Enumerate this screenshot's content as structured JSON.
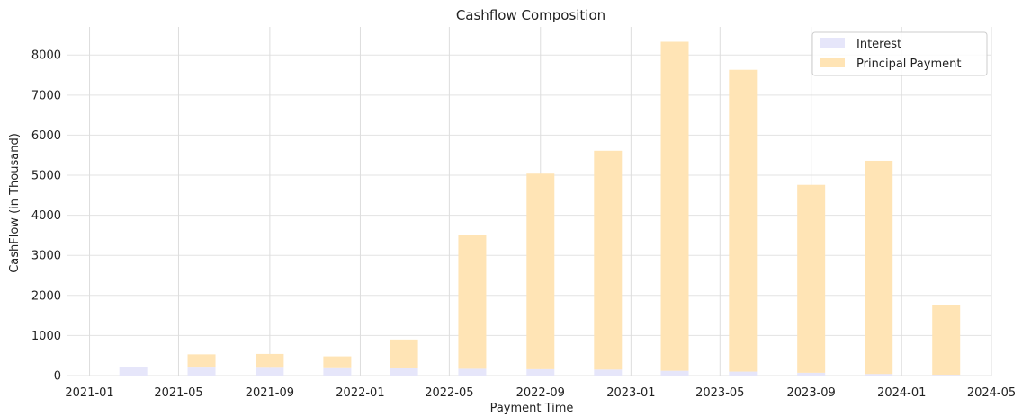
{
  "chart_data": {
    "type": "bar",
    "stacked": true,
    "title": "Cashflow Composition",
    "xlabel": "Payment Time",
    "ylabel": "CashFlow (in Thousand)",
    "xlim": [
      "2020-12-01",
      "2024-05-01"
    ],
    "ylim": [
      0,
      8700
    ],
    "grid": true,
    "legend_position": "top-right",
    "x_ticks": [
      "2021-01",
      "2021-05",
      "2021-09",
      "2022-01",
      "2022-05",
      "2022-09",
      "2023-01",
      "2023-05",
      "2023-09",
      "2024-01",
      "2024-05"
    ],
    "y_ticks": [
      0,
      1000,
      2000,
      3000,
      4000,
      5000,
      6000,
      7000,
      8000
    ],
    "categories": [
      "2021-03-01",
      "2021-06-01",
      "2021-09-01",
      "2021-12-01",
      "2022-03-01",
      "2022-06-01",
      "2022-09-01",
      "2022-12-01",
      "2023-03-01",
      "2023-06-01",
      "2023-09-01",
      "2023-12-01",
      "2024-03-01"
    ],
    "series": [
      {
        "name": "Interest",
        "color": "#e6e6fa",
        "values": [
          210,
          200,
          195,
          185,
          180,
          170,
          160,
          150,
          120,
          100,
          70,
          40,
          20
        ]
      },
      {
        "name": "Principal Payment",
        "color": "#ffe4b5",
        "values": [
          0,
          330,
          345,
          295,
          720,
          3340,
          4880,
          5460,
          8210,
          7530,
          4690,
          5320,
          1750
        ]
      }
    ]
  }
}
